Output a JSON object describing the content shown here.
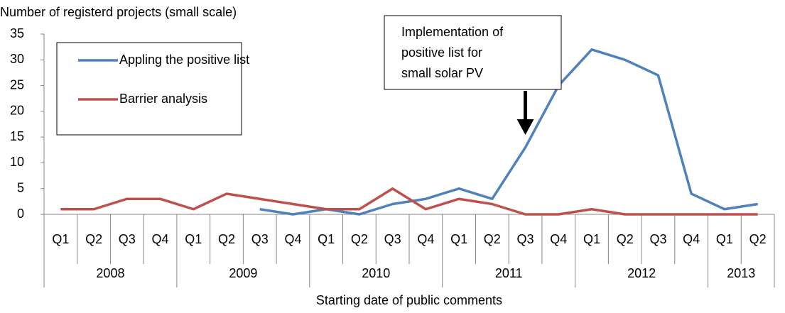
{
  "chart_data": {
    "type": "line",
    "y_title": "Number of registerd projects (small scale)",
    "x_title": "Starting date of public comments",
    "categories": [
      "Q1",
      "Q2",
      "Q3",
      "Q4",
      "Q1",
      "Q2",
      "Q3",
      "Q4",
      "Q1",
      "Q2",
      "Q3",
      "Q4",
      "Q1",
      "Q2",
      "Q3",
      "Q4",
      "Q1",
      "Q2",
      "Q3",
      "Q4",
      "Q1",
      "Q2"
    ],
    "x_groups": [
      "2008",
      "2009",
      "2010",
      "2011",
      "2012",
      "2013"
    ],
    "series": [
      {
        "name": "Appling the positive list",
        "color": "#4f81bd",
        "values": [
          null,
          null,
          null,
          null,
          null,
          null,
          1,
          0,
          1,
          0,
          2,
          3,
          5,
          3,
          13,
          25,
          32,
          30,
          27,
          4,
          1,
          2
        ]
      },
      {
        "name": "Barrier analysis",
        "color": "#c0504d",
        "values": [
          1,
          1,
          3,
          3,
          1,
          4,
          3,
          2,
          1,
          1,
          5,
          1,
          3,
          2,
          0,
          0,
          1,
          0,
          0,
          0,
          0,
          0
        ]
      }
    ],
    "ylim": [
      0,
      35
    ],
    "yticks": [
      0,
      5,
      10,
      15,
      20,
      25,
      30,
      35
    ],
    "grid": false,
    "legend": "upper-left",
    "annotation": [
      "Implementation of",
      "positive list for",
      "small solar PV"
    ]
  }
}
